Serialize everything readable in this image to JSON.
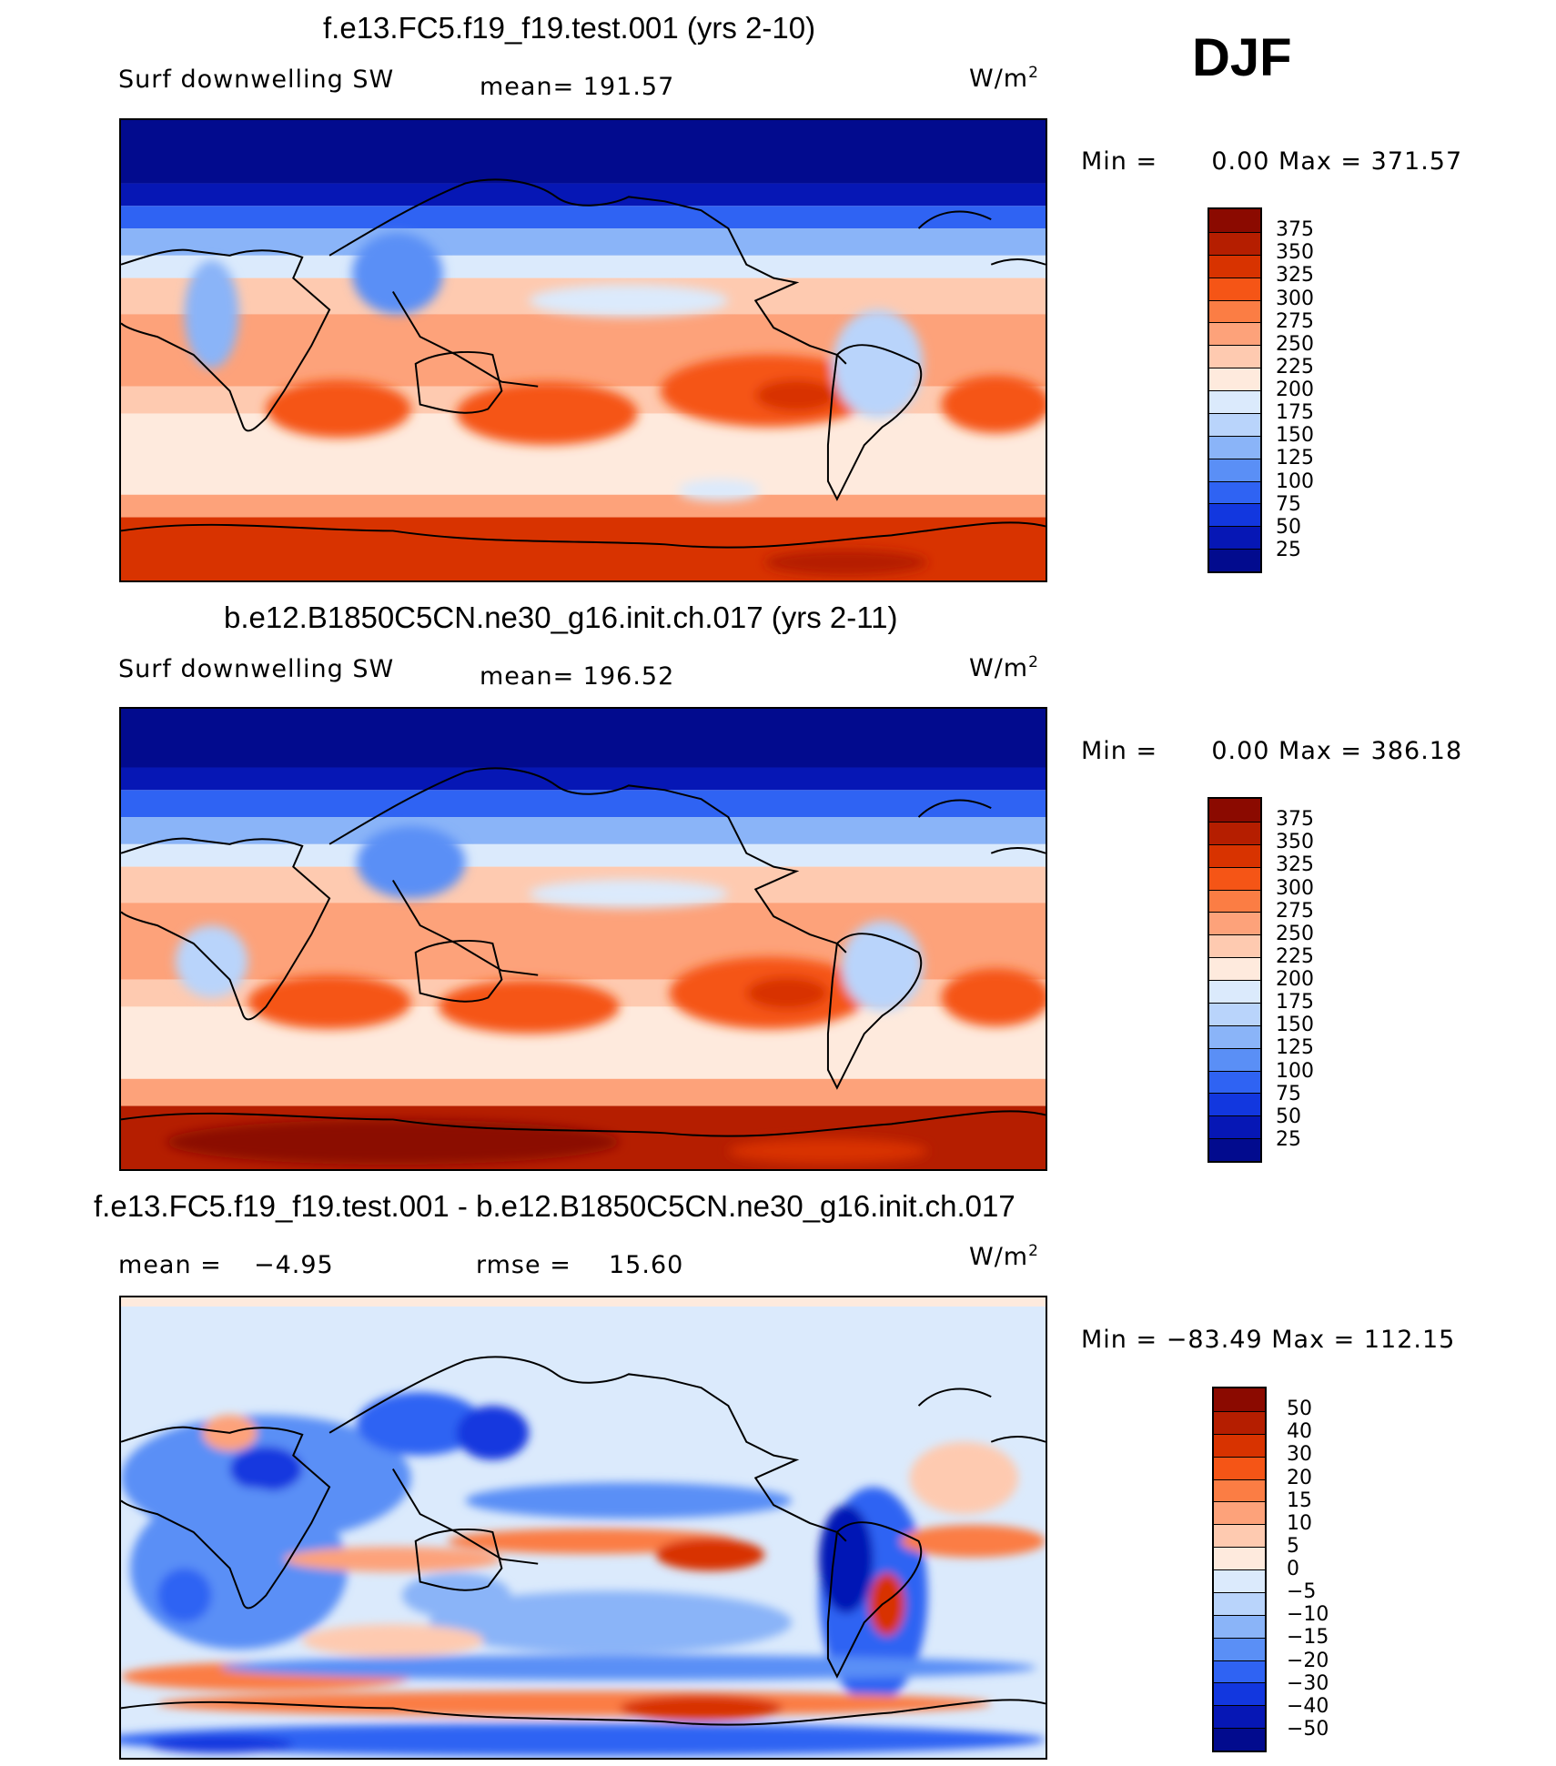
{
  "season": "DJF",
  "variable_label": "Surf downwelling SW",
  "units_base": "W/m",
  "units_exp": "2",
  "chart_data": [
    {
      "type": "heatmap",
      "title": "f.e13.FC5.f19_f19.test.001 (yrs 2-10)",
      "variable": "Surf downwelling SW",
      "mean_label": "mean=",
      "mean": "191.57",
      "min_label": "Min =",
      "min": "0.00",
      "max_label": "Max =",
      "max": "371.57",
      "colorbar_levels": [
        "375",
        "350",
        "325",
        "300",
        "275",
        "250",
        "225",
        "200",
        "175",
        "150",
        "125",
        "100",
        "75",
        "50",
        "25"
      ],
      "colorbar_colors": [
        "#8b0a00",
        "#b51e00",
        "#d83300",
        "#f55516",
        "#fb7d44",
        "#fda27a",
        "#fecab0",
        "#feeadd",
        "#dbeafc",
        "#b9d4fb",
        "#8ab4f8",
        "#5a8ff6",
        "#2f63f3",
        "#1237df",
        "#0617b5",
        "#020b8e"
      ]
    },
    {
      "type": "heatmap",
      "title": "b.e12.B1850C5CN.ne30_g16.init.ch.017 (yrs 2-11)",
      "variable": "Surf downwelling SW",
      "mean_label": "mean=",
      "mean": "196.52",
      "min_label": "Min =",
      "min": "0.00",
      "max_label": "Max =",
      "max": "386.18",
      "colorbar_levels": [
        "375",
        "350",
        "325",
        "300",
        "275",
        "250",
        "225",
        "200",
        "175",
        "150",
        "125",
        "100",
        "75",
        "50",
        "25"
      ],
      "colorbar_colors": [
        "#8b0a00",
        "#b51e00",
        "#d83300",
        "#f55516",
        "#fb7d44",
        "#fda27a",
        "#fecab0",
        "#feeadd",
        "#dbeafc",
        "#b9d4fb",
        "#8ab4f8",
        "#5a8ff6",
        "#2f63f3",
        "#1237df",
        "#0617b5",
        "#020b8e"
      ]
    },
    {
      "type": "heatmap",
      "title": "f.e13.FC5.f19_f19.test.001 - b.e12.B1850C5CN.ne30_g16.init.ch.017",
      "mean_label": "mean =",
      "mean": "−4.95",
      "rmse_label": "rmse =",
      "rmse": "15.60",
      "min_label": "Min =",
      "min": "−83.49",
      "max_label": "Max =",
      "max": "112.15",
      "colorbar_levels": [
        "50",
        "40",
        "30",
        "20",
        "15",
        "10",
        "5",
        "0",
        "−5",
        "−10",
        "−15",
        "−20",
        "−30",
        "−40",
        "−50"
      ],
      "colorbar_colors": [
        "#8b0a00",
        "#b51e00",
        "#d83300",
        "#f55516",
        "#fb7d44",
        "#fda27a",
        "#fecab0",
        "#feeadd",
        "#dbeafc",
        "#b9d4fb",
        "#8ab4f8",
        "#5a8ff6",
        "#2f63f3",
        "#1237df",
        "#0617b5",
        "#020b8e"
      ]
    }
  ]
}
